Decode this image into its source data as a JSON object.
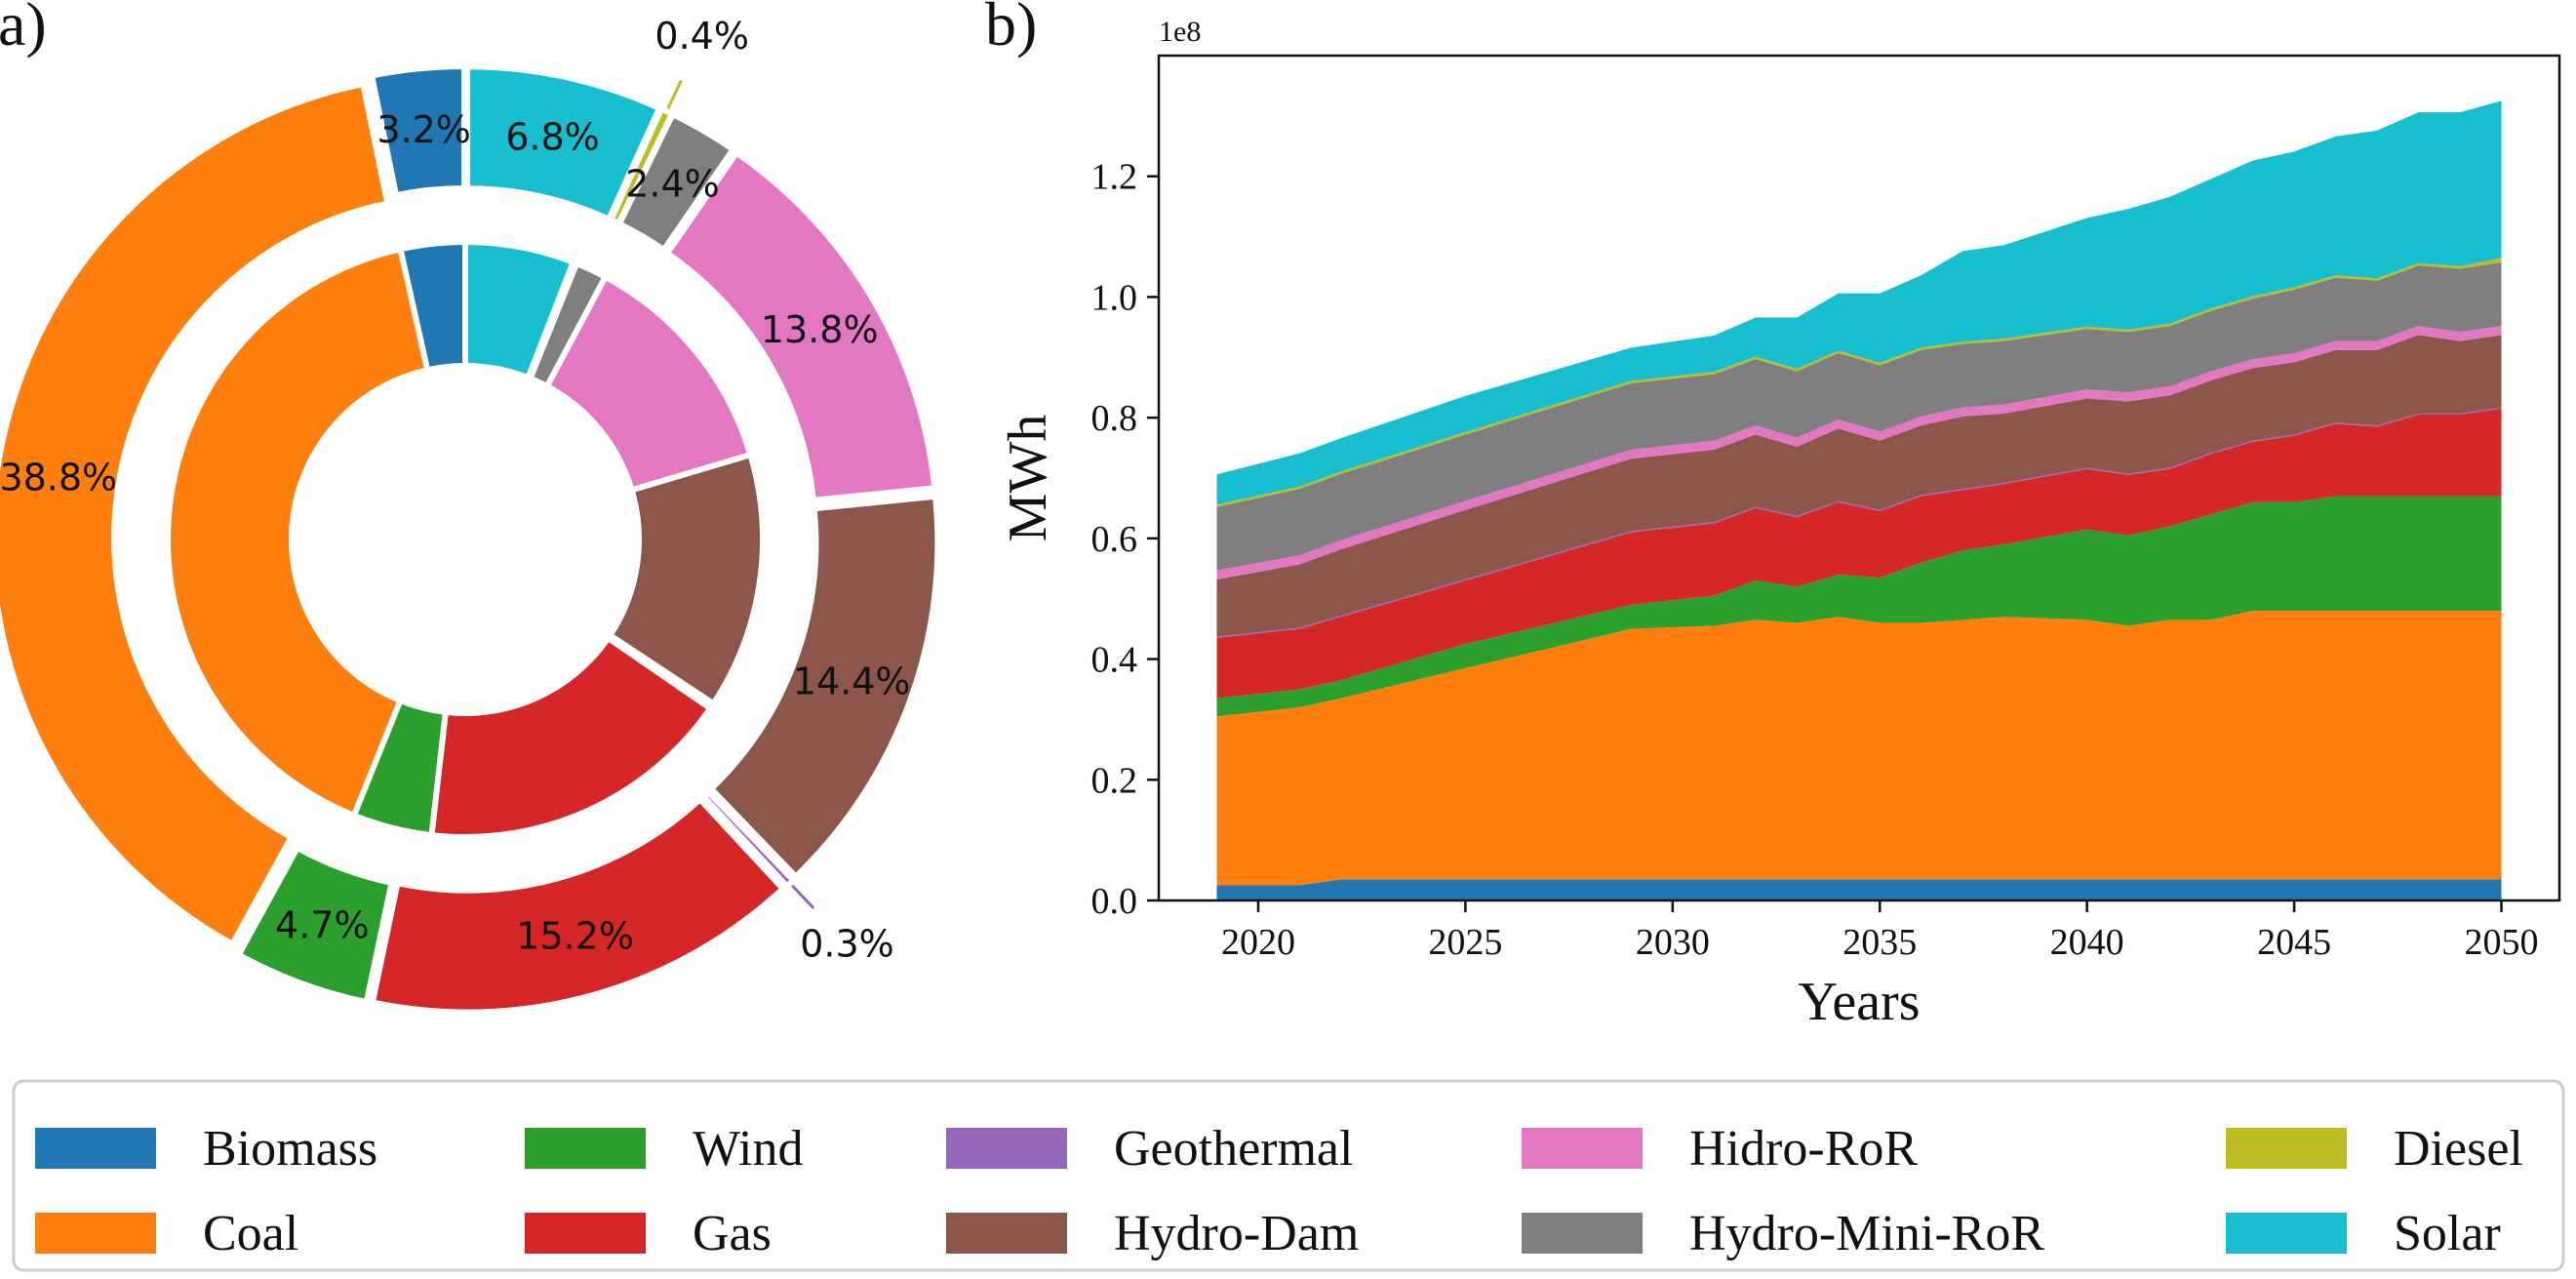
{
  "panels": {
    "a_label": "a)",
    "b_label": "b)"
  },
  "legend": [
    {
      "name": "Biomass",
      "color": "#1f77b4"
    },
    {
      "name": "Coal",
      "color": "#ff7f0e"
    },
    {
      "name": "Wind",
      "color": "#2ca02c"
    },
    {
      "name": "Gas",
      "color": "#d62728"
    },
    {
      "name": "Geothermal",
      "color": "#9467bd"
    },
    {
      "name": "Hydro-Dam",
      "color": "#8c564b"
    },
    {
      "name": "Hidro-RoR",
      "color": "#e377c2"
    },
    {
      "name": "Hydro-Mini-RoR",
      "color": "#7f7f7f"
    },
    {
      "name": "Diesel",
      "color": "#bcbd22"
    },
    {
      "name": "Solar",
      "color": "#17becf"
    }
  ],
  "chart_data": [
    {
      "type": "pie",
      "style": "nested-donut",
      "outer_ring": {
        "labels": [
          "Biomass",
          "Coal",
          "Wind",
          "Gas",
          "Geothermal",
          "Hydro-Dam",
          "Hidro-RoR",
          "Hydro-Mini-RoR",
          "Diesel",
          "Solar"
        ],
        "values": [
          3.2,
          38.8,
          4.7,
          15.2,
          0.3,
          14.4,
          13.8,
          2.4,
          0.4,
          6.8
        ],
        "value_labels": [
          "3.2%",
          "38.8%",
          "4.7%",
          "15.2%",
          "0.3%",
          "14.4%",
          "13.8%",
          "2.4%",
          "0.4%",
          "6.8%"
        ]
      },
      "inner_ring": {
        "labels": [
          "Biomass",
          "Coal",
          "Wind",
          "Gas",
          "Geothermal",
          "Hydro-Dam",
          "Hidro-RoR",
          "Hydro-Mini-RoR",
          "Diesel",
          "Solar"
        ],
        "values": [
          3.5,
          40.4,
          4.3,
          17.2,
          0.3,
          13.9,
          12.6,
          1.7,
          0.2,
          5.9
        ]
      }
    },
    {
      "type": "area",
      "stacked": true,
      "xlabel": "Years",
      "ylabel": "MWh",
      "offset_label": "1e8",
      "xlim": [
        2017.6,
        2051.4
      ],
      "ylim": [
        0,
        1.4
      ],
      "xticks": [
        2020,
        2025,
        2030,
        2035,
        2040,
        2045,
        2050
      ],
      "yticks": [
        0.0,
        0.2,
        0.4,
        0.6,
        0.8,
        1.0,
        1.2
      ],
      "xtick_labels": [
        "2020",
        "2025",
        "2030",
        "2035",
        "2040",
        "2045",
        "2050"
      ],
      "ytick_labels": [
        "0.0",
        "0.2",
        "0.4",
        "0.6",
        "0.8",
        "1.0",
        "1.2"
      ],
      "x": [
        2019,
        2021,
        2022,
        2025,
        2029,
        2031,
        2032,
        2033,
        2034,
        2035,
        2036,
        2037,
        2038,
        2040,
        2041,
        2042,
        2043,
        2044,
        2045,
        2046,
        2047,
        2048,
        2049,
        2050
      ],
      "series": [
        {
          "name": "Biomass",
          "values": [
            0.025,
            0.025,
            0.035,
            0.035,
            0.035,
            0.035,
            0.035,
            0.035,
            0.035,
            0.035,
            0.035,
            0.035,
            0.035,
            0.035,
            0.035,
            0.035,
            0.035,
            0.035,
            0.035,
            0.035,
            0.035,
            0.035,
            0.035,
            0.035
          ]
        },
        {
          "name": "Coal",
          "values": [
            0.28,
            0.295,
            0.3,
            0.35,
            0.415,
            0.42,
            0.43,
            0.425,
            0.435,
            0.425,
            0.425,
            0.43,
            0.435,
            0.43,
            0.42,
            0.43,
            0.43,
            0.445,
            0.445,
            0.445,
            0.445,
            0.445,
            0.445,
            0.445
          ]
        },
        {
          "name": "Wind",
          "values": [
            0.03,
            0.03,
            0.03,
            0.04,
            0.04,
            0.05,
            0.065,
            0.06,
            0.07,
            0.075,
            0.1,
            0.115,
            0.12,
            0.15,
            0.15,
            0.155,
            0.175,
            0.18,
            0.18,
            0.19,
            0.19,
            0.19,
            0.19,
            0.19
          ]
        },
        {
          "name": "Gas",
          "values": [
            0.1,
            0.1,
            0.105,
            0.105,
            0.12,
            0.12,
            0.12,
            0.115,
            0.12,
            0.11,
            0.11,
            0.1,
            0.1,
            0.1,
            0.1,
            0.095,
            0.1,
            0.1,
            0.11,
            0.12,
            0.115,
            0.135,
            0.135,
            0.145
          ]
        },
        {
          "name": "Geothermal",
          "values": [
            0.002,
            0.002,
            0.002,
            0.002,
            0.002,
            0.002,
            0.002,
            0.002,
            0.002,
            0.002,
            0.002,
            0.002,
            0.002,
            0.002,
            0.002,
            0.002,
            0.002,
            0.002,
            0.002,
            0.002,
            0.002,
            0.002,
            0.002,
            0.002
          ]
        },
        {
          "name": "Hydro-Dam",
          "values": [
            0.095,
            0.105,
            0.11,
            0.115,
            0.12,
            0.12,
            0.12,
            0.115,
            0.12,
            0.115,
            0.115,
            0.12,
            0.115,
            0.115,
            0.12,
            0.12,
            0.12,
            0.12,
            0.12,
            0.12,
            0.125,
            0.13,
            0.12,
            0.12
          ]
        },
        {
          "name": "Hidro-RoR",
          "values": [
            0.015,
            0.015,
            0.015,
            0.015,
            0.015,
            0.015,
            0.015,
            0.015,
            0.015,
            0.015,
            0.015,
            0.015,
            0.015,
            0.015,
            0.015,
            0.015,
            0.015,
            0.015,
            0.015,
            0.015,
            0.015,
            0.015,
            0.015,
            0.015
          ]
        },
        {
          "name": "Hydro-Mini-RoR",
          "values": [
            0.105,
            0.11,
            0.11,
            0.11,
            0.11,
            0.11,
            0.11,
            0.11,
            0.11,
            0.11,
            0.11,
            0.105,
            0.105,
            0.1,
            0.1,
            0.1,
            0.1,
            0.1,
            0.105,
            0.105,
            0.1,
            0.1,
            0.105,
            0.105
          ]
        },
        {
          "name": "Diesel",
          "values": [
            0.004,
            0.004,
            0.004,
            0.004,
            0.004,
            0.004,
            0.004,
            0.004,
            0.004,
            0.004,
            0.004,
            0.004,
            0.004,
            0.004,
            0.004,
            0.004,
            0.004,
            0.004,
            0.004,
            0.004,
            0.004,
            0.004,
            0.004,
            0.008
          ]
        },
        {
          "name": "Solar",
          "values": [
            0.05,
            0.055,
            0.055,
            0.06,
            0.055,
            0.06,
            0.065,
            0.085,
            0.095,
            0.115,
            0.12,
            0.15,
            0.155,
            0.18,
            0.2,
            0.21,
            0.215,
            0.225,
            0.225,
            0.23,
            0.245,
            0.25,
            0.255,
            0.26
          ]
        }
      ]
    }
  ]
}
